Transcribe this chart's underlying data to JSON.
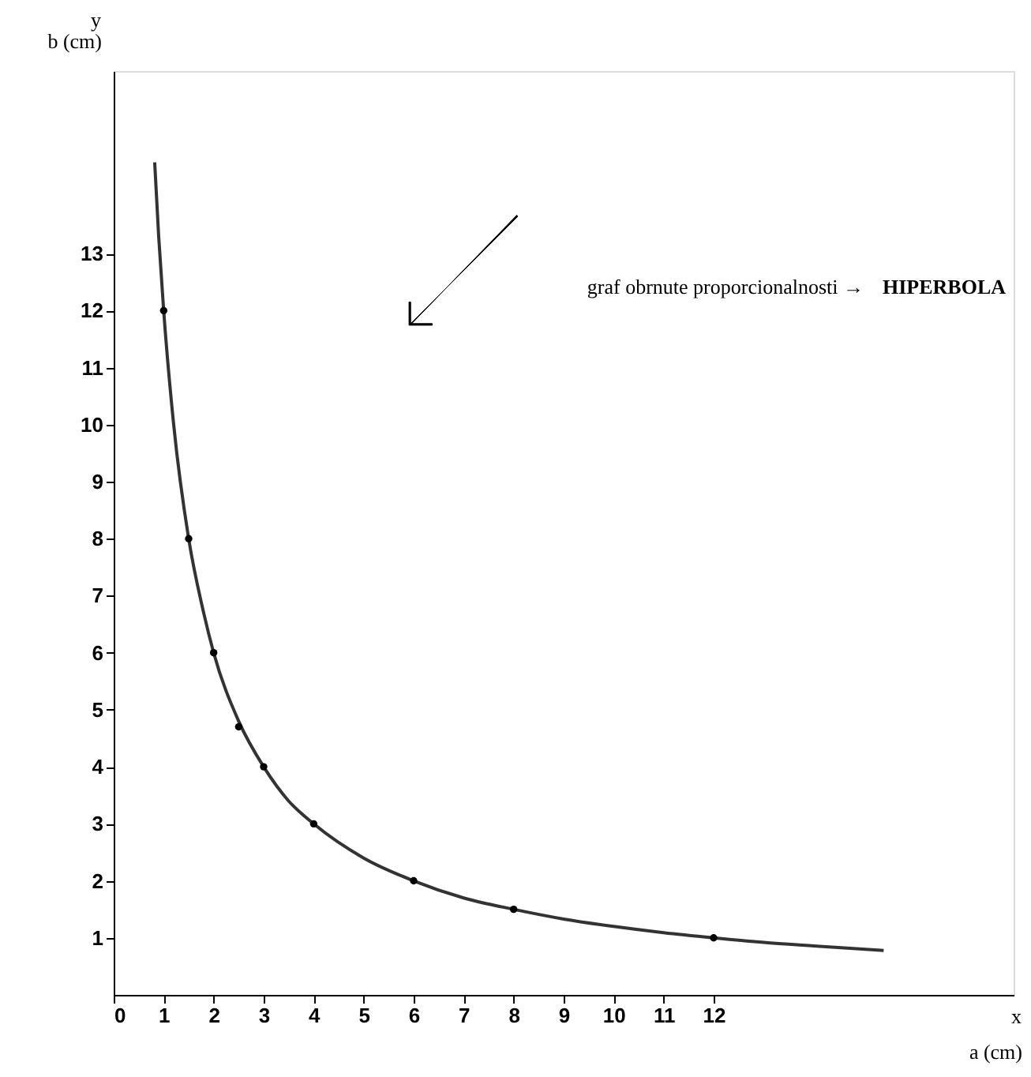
{
  "chart_data": {
    "type": "line",
    "xlabel": "a (cm)",
    "ylabel": "b (cm)",
    "xlim": [
      0,
      18
    ],
    "ylim": [
      0,
      16.2
    ],
    "xticks": [
      0,
      1,
      2,
      3,
      4,
      5,
      6,
      7,
      8,
      9,
      10,
      11,
      12
    ],
    "yticks": [
      1,
      2,
      3,
      4,
      5,
      6,
      7,
      8,
      9,
      10,
      11,
      12,
      13
    ],
    "grid": false,
    "series": [
      {
        "color": "#333333",
        "marker": "none",
        "x": [
          0.82,
          0.9,
          1,
          1.2,
          1.5,
          1.8,
          2,
          2.5,
          3,
          3.5,
          4,
          5,
          6,
          7,
          8,
          9,
          10,
          11,
          12,
          13,
          14,
          15.4
        ],
        "values": [
          14.6,
          13.3,
          12,
          10,
          8,
          6.7,
          6,
          4.8,
          4,
          3.4,
          3,
          2.4,
          2,
          1.7,
          1.5,
          1.33,
          1.2,
          1.09,
          1,
          0.92,
          0.86,
          0.78
        ]
      },
      {
        "type": "scatter",
        "color": "#000000",
        "marker": "circle",
        "x": [
          1,
          1.5,
          2,
          2.5,
          3,
          4,
          6,
          8,
          12
        ],
        "values": [
          12,
          8,
          6,
          4.7,
          4,
          3,
          2,
          1.5,
          1
        ]
      }
    ],
    "annotations": [
      "y",
      "x",
      "graf obrnute proporcionalnosti →",
      "HIPERBOLA"
    ]
  }
}
